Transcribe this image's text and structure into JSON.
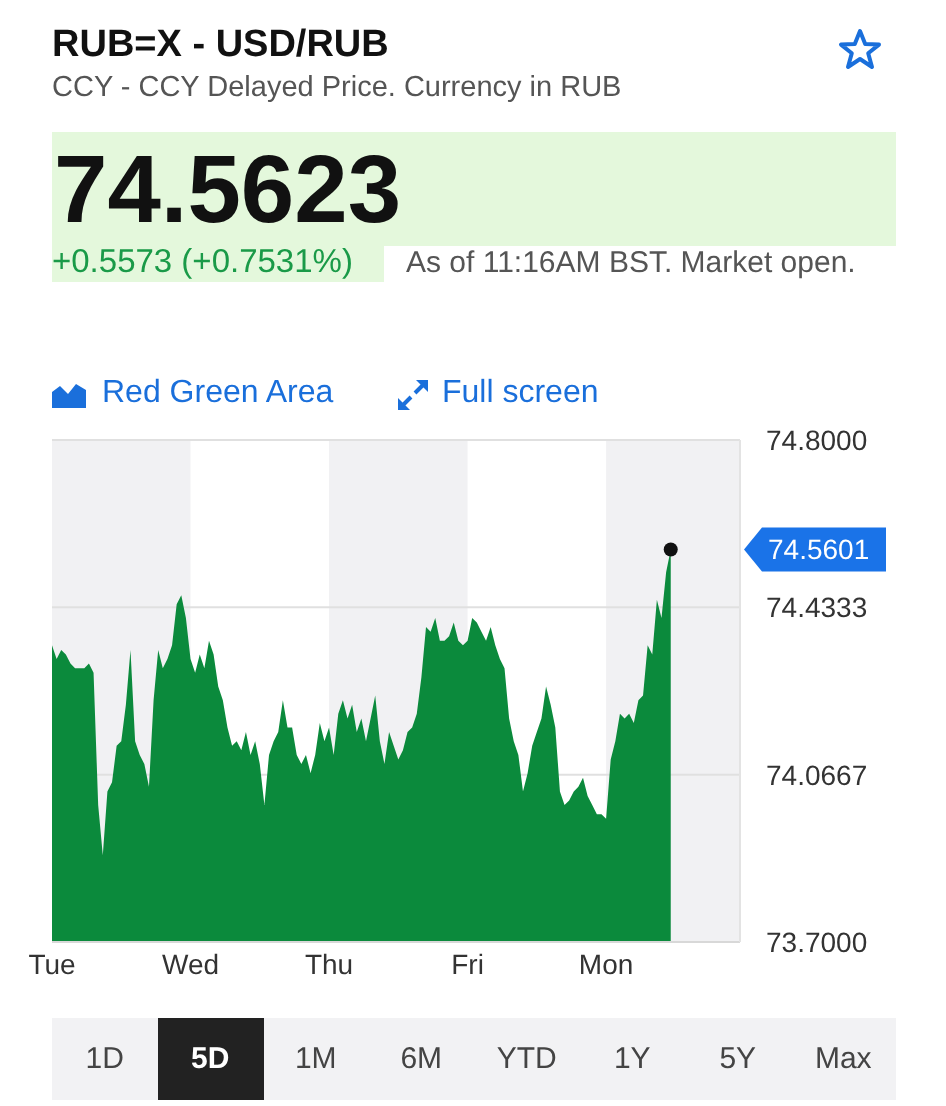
{
  "chart_data": {
    "type": "area",
    "title": "RUB=X - USD/RUB",
    "subtitle": "CCY - CCY Delayed Price. Currency in RUB",
    "annotations": [
      "74.5623",
      "+0.5573 (+0.7531%)",
      "As of 11:16AM BST. Market open.",
      "Red Green Area",
      "Full screen",
      "1D",
      "5D",
      "1M",
      "6M",
      "YTD",
      "1Y",
      "5Y",
      "Max",
      "74.5601"
    ],
    "categories": [
      "Tue",
      null,
      null,
      null,
      null,
      null,
      null,
      null,
      null,
      null,
      null,
      null,
      null,
      null,
      null,
      null,
      null,
      null,
      null,
      null,
      null,
      null,
      null,
      null,
      null,
      null,
      null,
      null,
      null,
      null,
      "Wed",
      null,
      null,
      null,
      null,
      null,
      null,
      null,
      null,
      null,
      null,
      null,
      null,
      null,
      null,
      null,
      null,
      null,
      null,
      null,
      null,
      null,
      null,
      null,
      null,
      null,
      null,
      null,
      null,
      null,
      "Thu",
      null,
      null,
      null,
      null,
      null,
      null,
      null,
      null,
      null,
      null,
      null,
      null,
      null,
      null,
      null,
      null,
      null,
      null,
      null,
      null,
      null,
      null,
      null,
      null,
      null,
      null,
      null,
      null,
      null,
      "Fri",
      null,
      null,
      null,
      null,
      null,
      null,
      null,
      null,
      null,
      null,
      null,
      null,
      null,
      null,
      null,
      null,
      null,
      null,
      null,
      null,
      null,
      null,
      null,
      null,
      null,
      null,
      null,
      null,
      null,
      "Mon",
      null,
      null,
      null,
      null,
      null,
      null,
      null,
      null,
      null,
      null,
      null,
      null,
      null,
      null,
      null,
      null,
      null,
      null,
      null,
      null,
      null,
      null,
      null,
      null,
      null,
      null,
      null,
      null,
      null
    ],
    "series": [
      {
        "color": "#0b8a3c",
        "values": [
          74.35,
          74.32,
          74.34,
          74.33,
          74.31,
          74.3,
          74.3,
          74.3,
          74.31,
          74.29,
          74.0,
          73.89,
          74.03,
          74.05,
          74.13,
          74.14,
          74.22,
          74.34,
          74.14,
          74.11,
          74.09,
          74.04,
          74.23,
          74.34,
          74.3,
          74.32,
          74.35,
          74.44,
          74.46,
          74.41,
          74.32,
          74.29,
          74.33,
          74.3,
          74.36,
          74.33,
          74.26,
          74.23,
          74.17,
          74.13,
          74.14,
          74.12,
          74.16,
          74.11,
          74.14,
          74.09,
          74.0,
          74.11,
          74.14,
          74.16,
          74.23,
          74.17,
          74.17,
          74.11,
          74.09,
          74.11,
          74.07,
          74.11,
          74.18,
          74.14,
          74.17,
          74.11,
          74.2,
          74.23,
          74.19,
          74.22,
          74.16,
          74.19,
          74.14,
          74.19,
          74.24,
          74.14,
          74.09,
          74.16,
          74.13,
          74.1,
          74.12,
          74.16,
          74.17,
          74.2,
          74.28,
          74.39,
          74.38,
          74.41,
          74.36,
          74.36,
          74.37,
          74.4,
          74.36,
          74.35,
          74.36,
          74.41,
          74.4,
          74.38,
          74.36,
          74.39,
          74.35,
          74.32,
          74.3,
          74.19,
          74.14,
          74.11,
          74.03,
          74.07,
          74.13,
          74.16,
          74.19,
          74.26,
          74.22,
          74.17,
          74.03,
          74.0,
          74.01,
          74.03,
          74.04,
          74.06,
          74.02,
          74.0,
          73.98,
          73.98,
          73.97,
          74.1,
          74.14,
          74.2,
          74.19,
          74.2,
          74.18,
          74.23,
          74.24,
          74.35,
          74.33,
          74.45,
          74.41,
          74.51,
          74.5601,
          null,
          null,
          null,
          null,
          null,
          null,
          null,
          null,
          null,
          null,
          null,
          null,
          null,
          null,
          null
        ]
      },
      {
        "type": "scatter",
        "color": "#111111",
        "values": [
          null,
          null,
          null,
          null,
          null,
          null,
          null,
          null,
          null,
          null,
          null,
          null,
          null,
          null,
          null,
          null,
          null,
          null,
          null,
          null,
          null,
          null,
          null,
          null,
          null,
          null,
          null,
          null,
          null,
          null,
          null,
          null,
          null,
          null,
          null,
          null,
          null,
          null,
          null,
          null,
          null,
          null,
          null,
          null,
          null,
          null,
          null,
          null,
          null,
          null,
          null,
          null,
          null,
          null,
          null,
          null,
          null,
          null,
          null,
          null,
          null,
          null,
          null,
          null,
          null,
          null,
          null,
          null,
          null,
          null,
          null,
          null,
          null,
          null,
          null,
          null,
          null,
          null,
          null,
          null,
          null,
          null,
          null,
          null,
          null,
          null,
          null,
          null,
          null,
          null,
          null,
          null,
          null,
          null,
          null,
          null,
          null,
          null,
          null,
          null,
          null,
          null,
          null,
          null,
          null,
          null,
          null,
          null,
          null,
          null,
          null,
          null,
          null,
          null,
          null,
          null,
          null,
          null,
          null,
          null,
          null,
          null,
          null,
          null,
          null,
          null,
          null,
          null,
          null,
          null,
          null,
          null,
          null,
          null,
          74.5601,
          null,
          null,
          null,
          null,
          null,
          null,
          null,
          null,
          null,
          null,
          null,
          null,
          null,
          null,
          null
        ]
      }
    ],
    "ylim": [
      73.7,
      74.8
    ],
    "yticks": [
      {
        "value": 74.8,
        "label": "74.8000"
      },
      74.4333,
      74.0667,
      {
        "value": 73.7,
        "label": "73.7000"
      }
    ],
    "grid": "y",
    "bands": [
      {
        "axis": "x",
        "from": "Wed",
        "to": "Thu",
        "color": "#ffffff"
      },
      {
        "axis": "x",
        "from": "Fri",
        "to": "Mon",
        "color": "#ffffff"
      }
    ]
  }
}
